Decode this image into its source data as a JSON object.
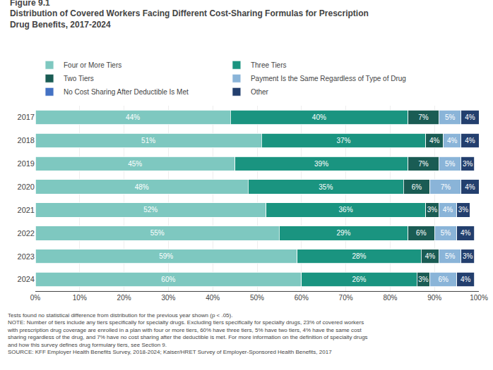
{
  "chart_data": {
    "type": "bar",
    "orientation": "horizontal",
    "stacked": true,
    "title": "Figure 9.1",
    "subtitle": "Distribution of Covered Workers Facing Different Cost-Sharing Formulas for Prescription Drug Benefits, 2017-2024",
    "categories": [
      "2017",
      "2018",
      "2019",
      "2020",
      "2021",
      "2022",
      "2023",
      "2024"
    ],
    "series": [
      {
        "name": "Four or More Tiers",
        "color": "#7ec8c0",
        "values": [
          44,
          51,
          45,
          48,
          52,
          55,
          59,
          60
        ],
        "value_labels": [
          "44%",
          "51%",
          "45%",
          "48%",
          "52%",
          "55%",
          "59%",
          "60%"
        ]
      },
      {
        "name": "Three Tiers",
        "color": "#1a9480",
        "values": [
          40,
          37,
          39,
          35,
          36,
          29,
          28,
          26
        ],
        "value_labels": [
          "40%",
          "37%",
          "39%",
          "35%",
          "36%",
          "29%",
          "28%",
          "26%"
        ]
      },
      {
        "name": "Two Tiers",
        "color": "#1a5c54",
        "values": [
          7,
          4,
          7,
          6,
          3,
          6,
          4,
          3
        ],
        "value_labels": [
          "7%",
          "4%",
          "7%",
          "6%",
          "3%",
          "6%",
          "4%",
          "3%"
        ]
      },
      {
        "name": "Payment Is the Same Regardless of Type of Drug",
        "color": "#8ab4d8",
        "values": [
          5,
          4,
          5,
          7,
          4,
          5,
          5,
          6
        ],
        "value_labels": [
          "5%",
          "4%",
          "5%",
          "7%",
          "4%",
          "5%",
          "5%",
          "6%"
        ]
      },
      {
        "name": "No Cost Sharing After Deductible Is Met",
        "color": "#4472c4",
        "values": [
          null,
          null,
          null,
          null,
          null,
          null,
          null,
          null
        ]
      },
      {
        "name": "Other",
        "color": "#233f6e",
        "values": [
          4,
          4,
          3,
          4,
          3,
          4,
          3,
          4
        ],
        "value_labels": [
          "4%",
          "4%",
          "3%",
          "4%",
          "3%",
          "4%",
          "3%",
          "4%"
        ]
      }
    ],
    "xlim": [
      0,
      100
    ],
    "xticks": [
      {
        "value": 0,
        "label": "0%"
      },
      {
        "value": 10,
        "label": "10%"
      },
      {
        "value": 20,
        "label": "20%"
      },
      {
        "value": 30,
        "label": "30%"
      },
      {
        "value": 40,
        "label": "40%"
      },
      {
        "value": 50,
        "label": "50%"
      },
      {
        "value": 60,
        "label": "60%"
      },
      {
        "value": 70,
        "label": "70%"
      },
      {
        "value": 80,
        "label": "80%"
      },
      {
        "value": 90,
        "label": "90%"
      },
      {
        "value": 100,
        "label": "100%"
      }
    ],
    "grid": true,
    "legend": "top",
    "data_labels": true,
    "annotations": [
      "Tests found no statistical difference from distribution for the previous year shown (p < .05).",
      "NOTE: Number of tiers include any tiers specifically for specialty drugs. Excluding tiers specifically for specialty drugs, 23% of covered workers",
      "with prescription drug coverage are enrolled in a plan with four or more tiers, 60% have three tiers, 5% have two tiers, 4% have the same cost",
      "sharing regardless of the drug, and 7% have no cost sharing after the deductible is met. For more information on the definition of specialty drugs",
      "and how this survey defines drug formulary tiers, see Section 9.",
      "SOURCE: KFF Employer Health Benefits Survey, 2018-2024; Kaiser/HRET Survey of Employer-Sponsored Health Benefits, 2017"
    ]
  }
}
